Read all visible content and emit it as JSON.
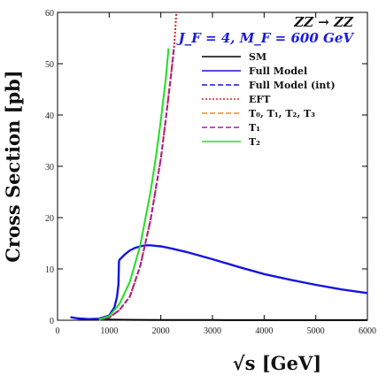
{
  "chart_data": {
    "type": "line",
    "title": "",
    "xlabel": "√s [GeV]",
    "ylabel": "Cross Section [pb]",
    "xlim": [
      0,
      6000
    ],
    "ylim": [
      0,
      60
    ],
    "xticks": [
      0,
      1000,
      2000,
      3000,
      4000,
      5000,
      6000
    ],
    "yticks": [
      0,
      10,
      20,
      30,
      40,
      50,
      60
    ],
    "grid": false,
    "legend_position": "top-right",
    "annotations": {
      "process": "ZZ → ZZ",
      "params": "J_F = 4, M_F = 600 GeV"
    },
    "series": [
      {
        "name": "SM",
        "color": "#000000",
        "style": "solid",
        "x": [
          250,
          300,
          400,
          500,
          600,
          800,
          1000,
          1500,
          2000,
          3000,
          4000,
          5000,
          6000
        ],
        "y": [
          0.6,
          0.5,
          0.35,
          0.28,
          0.22,
          0.16,
          0.12,
          0.07,
          0.05,
          0.03,
          0.02,
          0.015,
          0.01
        ]
      },
      {
        "name": "Full Model",
        "color": "#1515e0",
        "style": "solid",
        "x": [
          250,
          400,
          600,
          800,
          1000,
          1100,
          1150,
          1180,
          1190,
          1200,
          1300,
          1400,
          1500,
          1600,
          1700,
          1800,
          1900,
          2000,
          2200,
          2500,
          3000,
          3500,
          4000,
          4500,
          5000,
          5500,
          6000
        ],
        "y": [
          0.6,
          0.35,
          0.22,
          0.3,
          0.9,
          2.5,
          4.5,
          7.0,
          11.5,
          11.8,
          12.8,
          13.6,
          14.1,
          14.4,
          14.6,
          14.6,
          14.5,
          14.4,
          14.0,
          13.3,
          11.9,
          10.4,
          9.0,
          7.9,
          6.9,
          6.0,
          5.3
        ]
      },
      {
        "name": "Full Model (int)",
        "color": "#1515e0",
        "style": "dashed",
        "x": [],
        "y": []
      },
      {
        "name": "EFT",
        "color": "#e02020",
        "style": "dotted",
        "x": [
          800,
          1000,
          1200,
          1400,
          1600,
          1800,
          2000,
          2100,
          2200,
          2260,
          2300
        ],
        "y": [
          0.1,
          0.5,
          2.0,
          4.6,
          10.5,
          19.5,
          31.5,
          39.5,
          48.0,
          53.5,
          60
        ]
      },
      {
        "name": "T₀, T₁, T₂, T₃",
        "color": "#ff8c00",
        "style": "dashed",
        "x": [
          800,
          1000,
          1200,
          1400,
          1600,
          1800,
          2000,
          2100,
          2200,
          2260
        ],
        "y": [
          0.1,
          0.5,
          2.0,
          4.6,
          10.5,
          19.5,
          31.5,
          39.5,
          48.0,
          53.5
        ]
      },
      {
        "name": "T₁",
        "color": "#a020a0",
        "style": "dashed",
        "x": [
          800,
          1000,
          1200,
          1400,
          1600,
          1800,
          2000,
          2100,
          2200,
          2260
        ],
        "y": [
          0.1,
          0.5,
          2.0,
          4.6,
          10.5,
          19.5,
          31.5,
          39.5,
          48.0,
          53.5
        ]
      },
      {
        "name": "T₂",
        "color": "#22dd22",
        "style": "solid",
        "x": [
          800,
          1000,
          1200,
          1400,
          1600,
          1800,
          1900,
          2000,
          2100,
          2150
        ],
        "y": [
          0.15,
          0.8,
          3.2,
          7.5,
          14.5,
          25.0,
          31.5,
          39.0,
          47.5,
          53.0
        ]
      }
    ]
  }
}
